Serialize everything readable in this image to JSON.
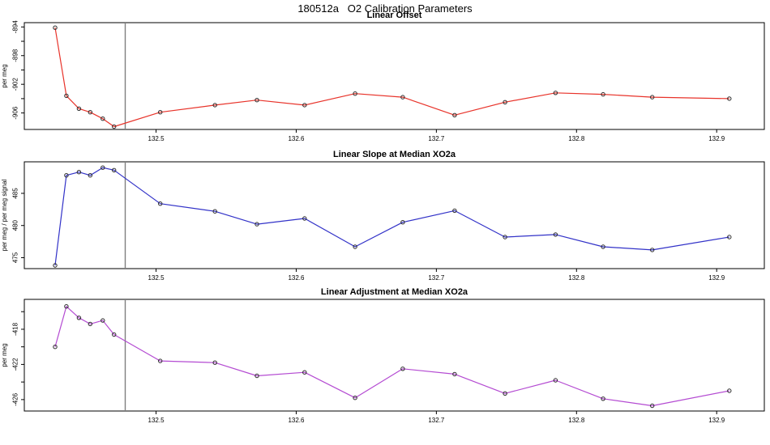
{
  "main_title": "180512a   O2 Calibration Parameters",
  "chart_data": [
    {
      "type": "line",
      "title": "Linear Offset",
      "ylabel": "per meg",
      "line_color": "#e8332a",
      "marker_color": "#2b2b2b",
      "vline_color": "#7f7f7f",
      "xlim": [
        132.406,
        132.934
      ],
      "ylim": [
        -908.3,
        -893.4
      ],
      "xticks": [
        132.5,
        132.6,
        132.7,
        132.8,
        132.9
      ],
      "yticks_major": [
        -894,
        -898,
        -902,
        -906
      ],
      "yticks_minor": [
        -896,
        -900,
        -904
      ],
      "vline_x": 132.478,
      "x": [
        132.428,
        132.436,
        132.445,
        132.453,
        132.462,
        132.47,
        132.503,
        132.542,
        132.572,
        132.606,
        132.642,
        132.676,
        132.713,
        132.749,
        132.785,
        132.819,
        132.854,
        132.909
      ],
      "y": [
        -894.1,
        -903.6,
        -905.4,
        -905.9,
        -906.8,
        -907.9,
        -905.9,
        -904.9,
        -904.2,
        -904.9,
        -903.3,
        -903.8,
        -906.3,
        -904.5,
        -903.2,
        -903.4,
        -903.8,
        -904.0
      ]
    },
    {
      "type": "line",
      "title": "Linear Slope at Median XO2a",
      "ylabel": "per meg / per meg signal",
      "line_color": "#3232c8",
      "marker_color": "#2b2b2b",
      "vline_color": "#7f7f7f",
      "xlim": [
        132.406,
        132.934
      ],
      "ylim": [
        473.3,
        489.9
      ],
      "xticks": [
        132.5,
        132.6,
        132.7,
        132.8,
        132.9
      ],
      "yticks_major": [
        475,
        480,
        485
      ],
      "yticks_minor": [],
      "vline_x": 132.478,
      "x": [
        132.428,
        132.436,
        132.445,
        132.453,
        132.462,
        132.47,
        132.503,
        132.542,
        132.572,
        132.606,
        132.642,
        132.676,
        132.713,
        132.749,
        132.785,
        132.819,
        132.854,
        132.909
      ],
      "y": [
        473.8,
        487.8,
        488.3,
        487.8,
        489.0,
        488.6,
        483.4,
        482.2,
        480.2,
        481.1,
        476.7,
        480.5,
        482.3,
        478.2,
        478.6,
        476.7,
        476.2,
        478.2
      ]
    },
    {
      "type": "line",
      "title": "Linear Adjustment at Median XO2a",
      "ylabel": "per meg",
      "line_color": "#b44bd2",
      "marker_color": "#2b2b2b",
      "vline_color": "#7f7f7f",
      "xlim": [
        132.406,
        132.934
      ],
      "ylim": [
        -427.3,
        -414.6
      ],
      "xticks": [
        132.5,
        132.6,
        132.7,
        132.8,
        132.9
      ],
      "yticks_major": [
        -418,
        -422,
        -426
      ],
      "yticks_minor": [
        -416,
        -420,
        -424
      ],
      "vline_x": 132.478,
      "x": [
        132.428,
        132.436,
        132.445,
        132.453,
        132.462,
        132.47,
        132.503,
        132.542,
        132.572,
        132.606,
        132.642,
        132.676,
        132.713,
        132.749,
        132.785,
        132.819,
        132.854,
        132.909
      ],
      "y": [
        -420.0,
        -415.4,
        -416.7,
        -417.4,
        -417.0,
        -418.6,
        -421.6,
        -421.8,
        -423.3,
        -422.9,
        -425.8,
        -422.5,
        -423.1,
        -425.3,
        -423.8,
        -425.9,
        -426.7,
        -425.0
      ]
    }
  ]
}
